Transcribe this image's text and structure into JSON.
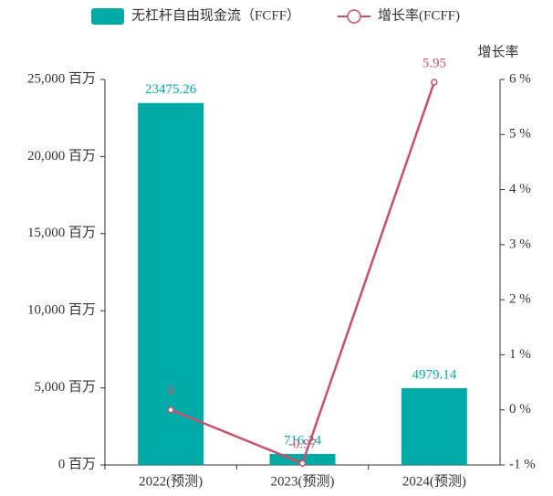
{
  "chart_data": {
    "type": "bar",
    "categories": [
      "2022(预测)",
      "2023(预测)",
      "2024(预测)"
    ],
    "series": [
      {
        "name": "无杠杆自由现金流（FCFF）",
        "type": "bar",
        "color": "#00aaa6",
        "values": [
          23475.26,
          716.24,
          4979.14
        ]
      },
      {
        "name": "增长率(FCFF)",
        "type": "line",
        "axis": "y2",
        "color": "#c9506a",
        "values": [
          0,
          -0.97,
          5.95
        ]
      }
    ],
    "ylim": [
      0,
      25000
    ],
    "yticks": [
      {
        "value": 0,
        "label": "0 百万"
      },
      {
        "value": 5000,
        "label": "5,000 百万"
      },
      {
        "value": 10000,
        "label": "10,000 百万"
      },
      {
        "value": 15000,
        "label": "15,000 百万"
      },
      {
        "value": 20000,
        "label": "20,000 百万"
      },
      {
        "value": 25000,
        "label": "25,000 百万"
      }
    ],
    "y2_label": "增长率",
    "y2lim": [
      -1,
      6
    ],
    "y2ticks": [
      {
        "value": -1,
        "label": "-1 %"
      },
      {
        "value": 0,
        "label": "0 %"
      },
      {
        "value": 1,
        "label": "1 %"
      },
      {
        "value": 2,
        "label": "2 %"
      },
      {
        "value": 3,
        "label": "3 %"
      },
      {
        "value": 4,
        "label": "4 %"
      },
      {
        "value": 5,
        "label": "5 %"
      },
      {
        "value": 6,
        "label": "6 %"
      }
    ],
    "legend": "top"
  }
}
